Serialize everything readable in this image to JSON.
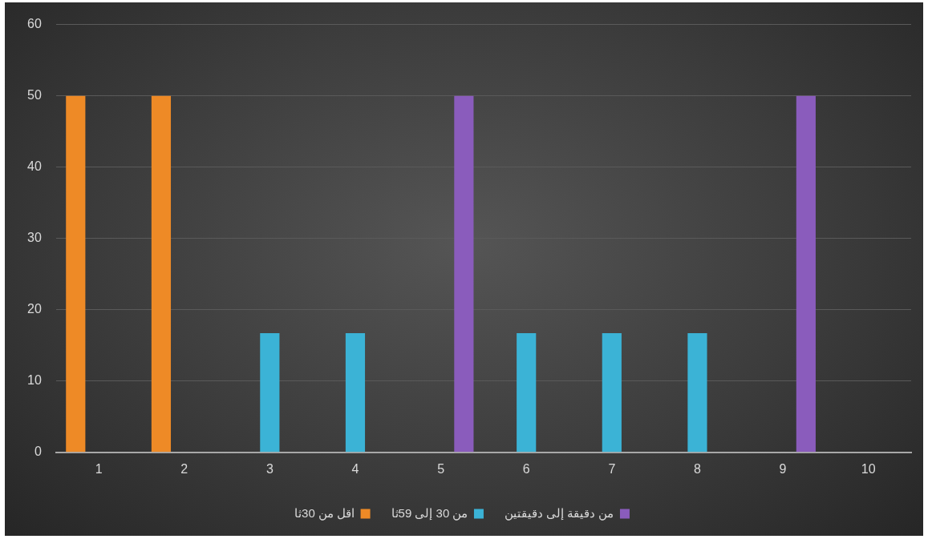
{
  "chart_data": {
    "type": "bar",
    "categories": [
      "1",
      "2",
      "3",
      "4",
      "5",
      "6",
      "7",
      "8",
      "9",
      "10"
    ],
    "series": [
      {
        "name": "اقل من 30ثا",
        "color": "#ee8a26",
        "values": [
          50,
          50,
          null,
          null,
          null,
          null,
          null,
          null,
          null,
          null
        ]
      },
      {
        "name": "من 30 إلى 59ثا",
        "color": "#3bb3d6",
        "values": [
          null,
          null,
          16.7,
          16.7,
          null,
          16.7,
          16.7,
          16.7,
          null,
          null
        ]
      },
      {
        "name": "من دقيقة إلى دقيقتين",
        "color": "#8a5cbc",
        "values": [
          null,
          null,
          null,
          null,
          50,
          null,
          null,
          null,
          50,
          null
        ]
      }
    ],
    "ylim": [
      0,
      60
    ],
    "yticks": [
      0,
      10,
      20,
      30,
      40,
      50,
      60
    ],
    "grid": "y",
    "legend": "bottom"
  }
}
